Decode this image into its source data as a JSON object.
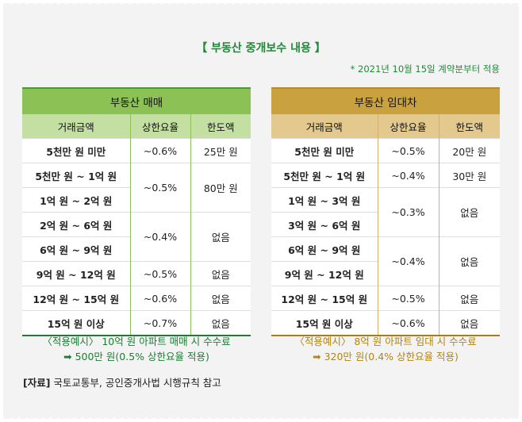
{
  "title": "【 부동산 중개보수 내용 】",
  "note": "* 2021년 10월 15일 계약분부터 적용",
  "sale": {
    "heading": "부동산 매매",
    "columns": [
      "거래금액",
      "상한요율",
      "한도액"
    ],
    "rows": [
      {
        "amount": "5천만 원 미만",
        "rate": "~0.6%",
        "limit": "25만 원"
      },
      {
        "amount": "5천만 원 ~ 1억 원",
        "rate": "~0.5%",
        "limit": "80만 원",
        "span": 2
      },
      {
        "amount": "1억 원 ~ 2억 원"
      },
      {
        "amount": "2억 원 ~ 6억 원",
        "rate": "~0.4%",
        "limit": "없음",
        "span": 2
      },
      {
        "amount": "6억 원 ~ 9억 원"
      },
      {
        "amount": "9억 원 ~ 12억 원",
        "rate": "~0.5%",
        "limit": "없음"
      },
      {
        "amount": "12억 원 ~ 15억 원",
        "rate": "~0.6%",
        "limit": "없음"
      },
      {
        "amount": "15억 원 이상",
        "rate": "~0.7%",
        "limit": "없음"
      }
    ],
    "example_line1": "〈적용예시〉 10억 원 아파트 매매 시 수수료",
    "example_line2": "➡ 500만 원(0.5% 상한요율 적용)"
  },
  "lease": {
    "heading": "부동산 임대차",
    "columns": [
      "거래금액",
      "상한요율",
      "한도액"
    ],
    "rows": [
      {
        "amount": "5천만 원 미만",
        "rate": "~0.5%",
        "limit": "20만 원"
      },
      {
        "amount": "5천만 원 ~ 1억 원",
        "rate": "~0.4%",
        "limit": "30만 원"
      },
      {
        "amount": "1억 원 ~ 3억 원",
        "rate": "~0.3%",
        "limit": "없음",
        "span": 2
      },
      {
        "amount": "3억 원 ~ 6억 원"
      },
      {
        "amount": "6억 원 ~ 9억 원",
        "rate": "~0.4%",
        "limit": "없음",
        "span": 2
      },
      {
        "amount": "9억 원 ~ 12억 원"
      },
      {
        "amount": "12억 원 ~ 15억 원",
        "rate": "~0.5%",
        "limit": "없음"
      },
      {
        "amount": "15억 원 이상",
        "rate": "~0.6%",
        "limit": "없음"
      }
    ],
    "example_line1": "〈적용예시〉 8억 원 아파트 임대 시 수수료",
    "example_line2": "➡ 320만 원(0.4% 상한요율 적용)"
  },
  "source_label": "[자료]",
  "source_text": " 국토교통부, 공인중개사법 시행규칙 참고",
  "colors": {
    "green": "#1f8a3a",
    "gold": "#b5850f"
  }
}
